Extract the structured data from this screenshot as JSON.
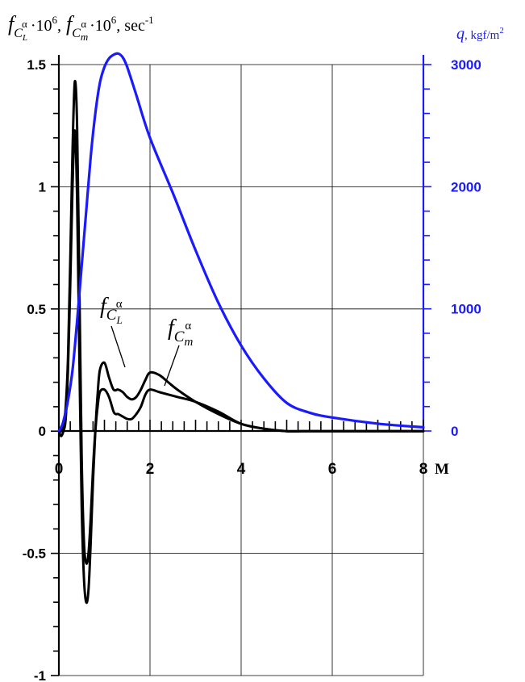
{
  "chart_data": {
    "type": "line",
    "title": "",
    "left_axis_label": {
      "f": "f",
      "sub_L_sym": "C",
      "sub_L": "L",
      "sup_alpha": "α",
      "mult": "·10",
      "exp6": "6",
      "sep": ",",
      "sub_m_sym": "C",
      "sub_m": "m",
      "unit": ", sec",
      "unit_exp": "-1"
    },
    "right_axis_label": {
      "var": "q",
      "unit": ", kgf/m",
      "unit_exp": "2"
    },
    "xlabel": "M",
    "xlim": [
      0,
      8
    ],
    "ylim_left": [
      -1,
      1.5
    ],
    "ylim_right": [
      0,
      3000
    ],
    "x_ticks": [
      "0",
      "2",
      "4",
      "6",
      "8"
    ],
    "x_tick_values": [
      0,
      2,
      4,
      6,
      8
    ],
    "y_left_ticks": [
      "-1",
      "-0.5",
      "0",
      "0.5",
      "1",
      "1.5"
    ],
    "y_left_tick_values": [
      -1,
      -0.5,
      0,
      0.5,
      1,
      1.5
    ],
    "y_right_ticks": [
      "0",
      "1000",
      "2000",
      "3000"
    ],
    "y_right_tick_values": [
      0,
      1000,
      2000,
      3000
    ],
    "grid": true,
    "colors": {
      "f_curves": "#000000",
      "q_curve": "#1a1aff"
    },
    "annotations": [
      {
        "series": "fCL",
        "sym": "f",
        "sub": "C",
        "subsub": "L",
        "sup": "α"
      },
      {
        "series": "fCm",
        "sym": "f",
        "sub": "C",
        "subsub": "m",
        "sup": "α"
      }
    ],
    "series": [
      {
        "id": "fCL",
        "axis": "left",
        "x": [
          0.0,
          0.05,
          0.1,
          0.15,
          0.2,
          0.25,
          0.3,
          0.35,
          0.4,
          0.45,
          0.5,
          0.55,
          0.6,
          0.65,
          0.7,
          0.75,
          0.8,
          0.85,
          0.9,
          1.0,
          1.1,
          1.2,
          1.25,
          1.3,
          1.4,
          1.5,
          1.6,
          1.7,
          1.8,
          1.9,
          2.0,
          2.2,
          2.4,
          2.6,
          3.0,
          3.5,
          4.0,
          4.5,
          5.0,
          5.5,
          6.0,
          7.0,
          8.0
        ],
        "y": [
          0.0,
          0.0,
          0.02,
          0.1,
          0.3,
          0.7,
          1.15,
          1.43,
          1.25,
          0.6,
          -0.1,
          -0.45,
          -0.54,
          -0.5,
          -0.35,
          -0.15,
          0.0,
          0.1,
          0.16,
          0.17,
          0.14,
          0.08,
          0.07,
          0.07,
          0.06,
          0.05,
          0.05,
          0.07,
          0.1,
          0.15,
          0.17,
          0.16,
          0.15,
          0.14,
          0.12,
          0.08,
          0.03,
          0.01,
          0.0,
          0.0,
          0.0,
          0.0,
          0.0
        ]
      },
      {
        "id": "fCm",
        "axis": "left",
        "x": [
          0.0,
          0.05,
          0.1,
          0.15,
          0.2,
          0.25,
          0.3,
          0.35,
          0.4,
          0.45,
          0.5,
          0.55,
          0.6,
          0.65,
          0.7,
          0.75,
          0.8,
          0.85,
          0.9,
          1.0,
          1.1,
          1.2,
          1.3,
          1.4,
          1.5,
          1.6,
          1.7,
          1.8,
          1.9,
          2.0,
          2.2,
          2.4,
          2.6,
          3.0,
          3.5,
          4.0,
          4.5,
          5.0,
          5.5,
          6.0,
          7.0,
          8.0
        ],
        "y": [
          0.0,
          -0.02,
          0.0,
          0.05,
          0.25,
          0.6,
          1.0,
          1.23,
          0.95,
          0.3,
          -0.3,
          -0.6,
          -0.7,
          -0.65,
          -0.45,
          -0.2,
          0.0,
          0.15,
          0.25,
          0.28,
          0.22,
          0.17,
          0.17,
          0.16,
          0.14,
          0.13,
          0.14,
          0.17,
          0.21,
          0.24,
          0.23,
          0.2,
          0.17,
          0.12,
          0.07,
          0.03,
          0.01,
          0.0,
          0.0,
          0.0,
          0.0,
          0.0
        ]
      },
      {
        "id": "q",
        "axis": "right",
        "x": [
          0.0,
          0.05,
          0.1,
          0.2,
          0.3,
          0.4,
          0.5,
          0.6,
          0.7,
          0.8,
          0.9,
          1.0,
          1.1,
          1.2,
          1.3,
          1.4,
          1.5,
          1.7,
          2.0,
          2.5,
          3.0,
          3.5,
          4.0,
          4.5,
          5.0,
          5.5,
          6.0,
          7.0,
          8.0
        ],
        "y": [
          0,
          30,
          80,
          250,
          500,
          900,
          1350,
          1800,
          2250,
          2600,
          2850,
          2980,
          3050,
          3080,
          3090,
          3060,
          2980,
          2750,
          2400,
          1950,
          1480,
          1050,
          700,
          430,
          230,
          150,
          110,
          60,
          30
        ]
      }
    ]
  }
}
